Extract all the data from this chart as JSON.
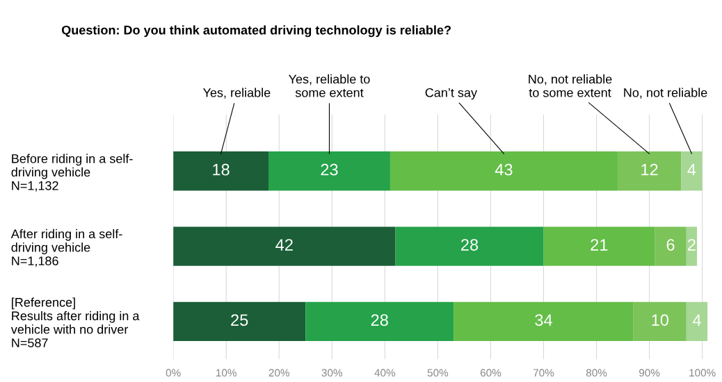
{
  "chart_data": {
    "type": "bar",
    "orientation": "horizontal",
    "stacked": true,
    "title": "Question: Do you think automated driving technology is reliable?",
    "categories": [
      "Before riding in a self-\ndriving vehicle\nN=1,132",
      "After riding in a self-\ndriving vehicle\nN=1,186",
      "[Reference]\nResults after riding in a\nvehicle with no driver\nN=587"
    ],
    "series": [
      {
        "name": "Yes, reliable",
        "color": "#1b5e38",
        "values": [
          18,
          42,
          25
        ]
      },
      {
        "name": "Yes, reliable to\nsome extent",
        "color": "#25a24a",
        "values": [
          23,
          28,
          28
        ]
      },
      {
        "name": "Can’t say",
        "color": "#63bd47",
        "values": [
          43,
          21,
          34
        ]
      },
      {
        "name": "No, not reliable\nto some extent",
        "color": "#7cc35a",
        "values": [
          12,
          6,
          10
        ]
      },
      {
        "name": "No, not reliable",
        "color": "#a6d794",
        "values": [
          4,
          2,
          4
        ]
      }
    ],
    "data_labels": true,
    "xlim": [
      0,
      101
    ],
    "xticks": [
      {
        "value": 0,
        "label": "0%"
      },
      {
        "value": 10,
        "label": "10%"
      },
      {
        "value": 20,
        "label": "20%"
      },
      {
        "value": 30,
        "label": "30%"
      },
      {
        "value": 40,
        "label": "40%"
      },
      {
        "value": 50,
        "label": "50%"
      },
      {
        "value": 60,
        "label": "60%"
      },
      {
        "value": 70,
        "label": "70%"
      },
      {
        "value": 80,
        "label": "80%"
      },
      {
        "value": 90,
        "label": "90%"
      },
      {
        "value": 100,
        "label": "100%"
      }
    ],
    "grid": "x",
    "legend": false
  }
}
